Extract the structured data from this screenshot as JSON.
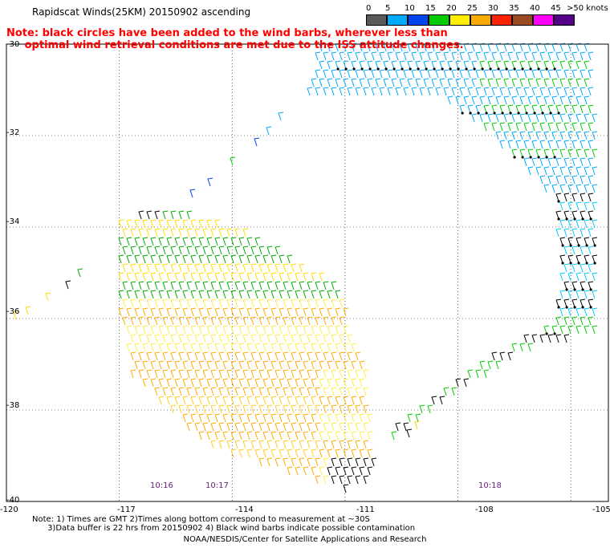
{
  "title": "Rapidscat Winds(25KM) 20150902 ascending",
  "note_red": "Note: black circles have been added to the wind barbs, wherever less than\n     optimal wind retrieval conditions are met due to the ISS attitude changes.",
  "legend": {
    "colors": [
      "#5a5a5a",
      "#00aaff",
      "#0044ee",
      "#00cc00",
      "#ffee00",
      "#ffaa00",
      "#ff2200",
      "#9a4a22",
      "#ff00ff",
      "#550088"
    ],
    "labels": [
      "0",
      "5",
      "10",
      "15",
      "20",
      "25",
      "30",
      "35",
      "40",
      "45",
      ">50 knots"
    ]
  },
  "footer": "Note: 1) Times are GMT 2)Times along bottom correspond to measurement at ~30S\n      3)Data buffer is 22 hrs from 20150902 4) Black wind barbs indicate possible contamination",
  "credit": "NOAA/NESDIS/Center for Satellite Applications and Research",
  "times": [
    "10:16",
    "10:17",
    "10:18"
  ],
  "chart_data": {
    "type": "map",
    "xlim": [
      -120,
      -104
    ],
    "ylim": [
      -40,
      -30
    ],
    "x_ticks": [
      "-120",
      "-117",
      "-114",
      "-111",
      "-108",
      "-105"
    ],
    "y_ticks": [
      "-30",
      "-32",
      "-34",
      "-36",
      "-38",
      "-40"
    ],
    "grid": "dotted",
    "time_labels": [
      {
        "label": "10:16",
        "lon": -116.1
      },
      {
        "label": "10:17",
        "lon": -114.7
      },
      {
        "label": "10:18",
        "lon": -107.8
      }
    ],
    "swaths": [
      {
        "region": "west-main",
        "speed_range_knots": [
          15,
          25
        ],
        "dominant_colors": [
          "#ffee00",
          "#ffaa00",
          "#00cc00"
        ]
      },
      {
        "region": "east-arc",
        "speed_range_knots": [
          5,
          20
        ],
        "dominant_colors": [
          "#00aaff",
          "#00cc00",
          "#0044ee"
        ]
      }
    ]
  }
}
